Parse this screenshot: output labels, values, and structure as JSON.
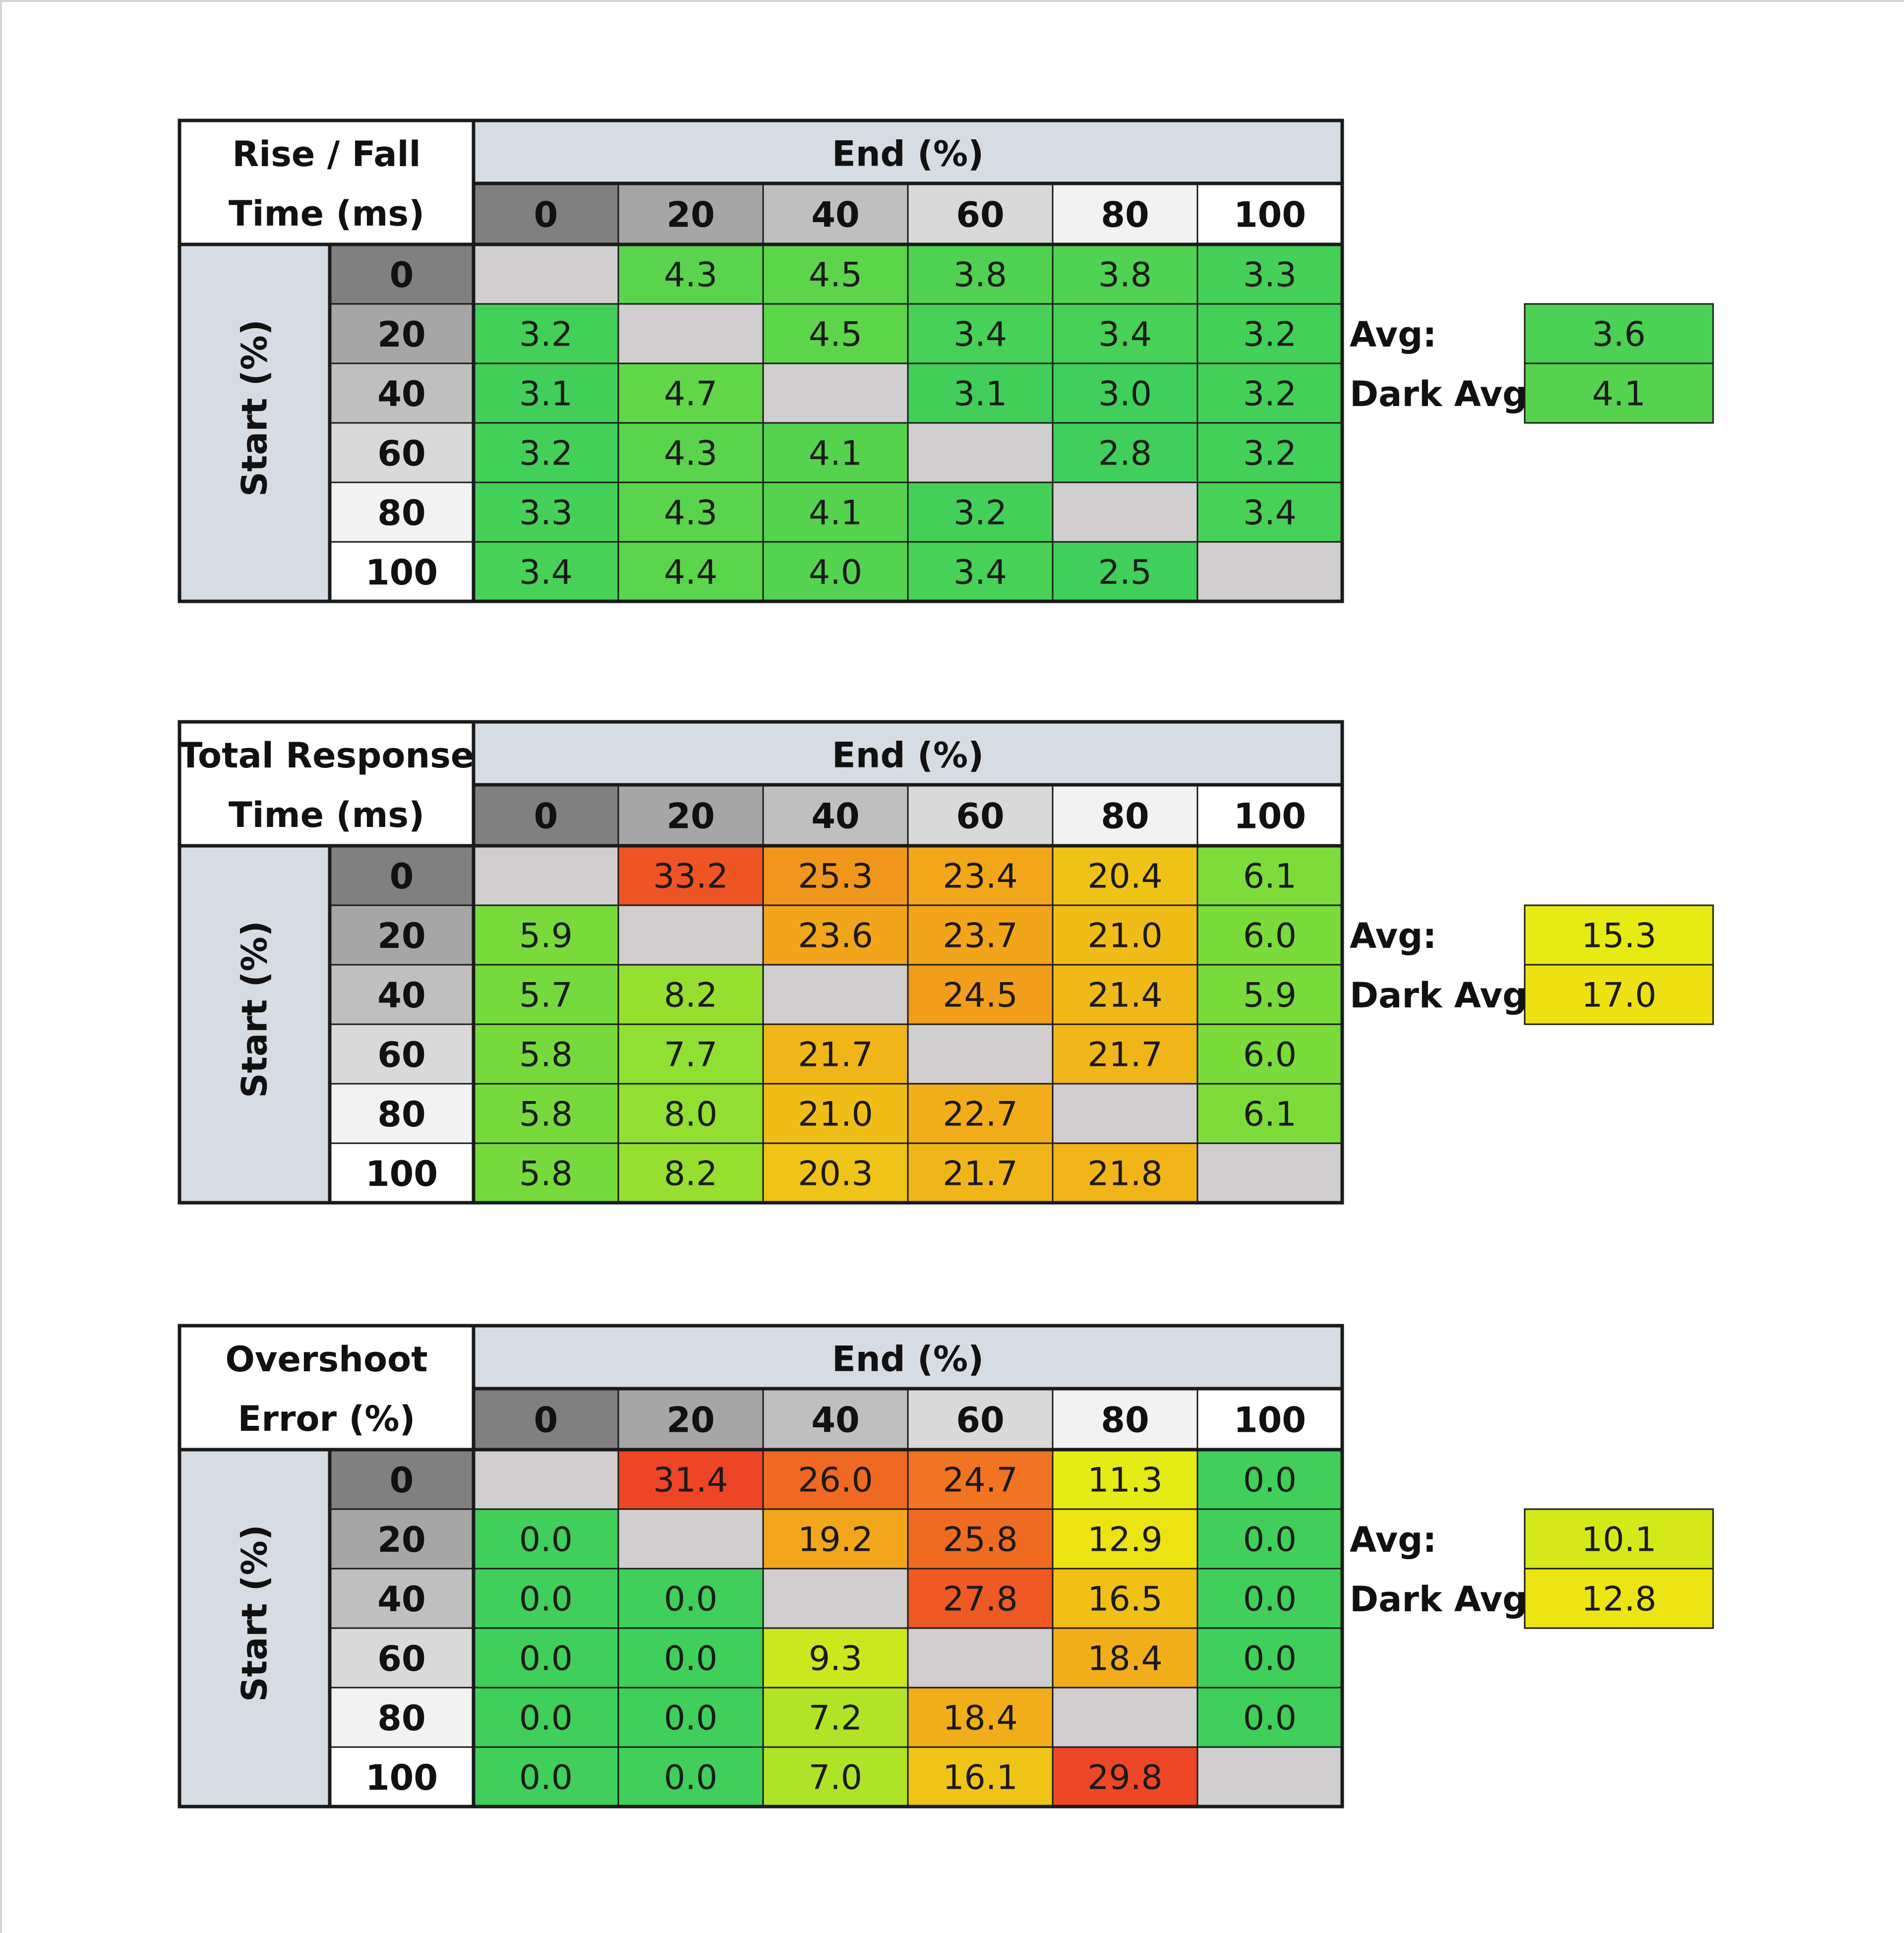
{
  "colors": {
    "header_bg": "#d6dce4",
    "diagonal_blank": "#d0cecf",
    "grid_line": "#1a1a1a",
    "green": "#3fcf5a",
    "green_mid": "#7fdc38",
    "yellow": "#ecec12",
    "orange": "#f2a31b",
    "red": "#ee4527",
    "shade_levels": [
      "#808080",
      "#a6a6a6",
      "#bfbfbf",
      "#d9d9d9",
      "#f2f2f2",
      "#ffffff"
    ]
  },
  "chart_data": [
    {
      "type": "heatmap",
      "title_line1": "Rise / Fall",
      "title_line2": "Time (ms)",
      "xlabel": "End (%)",
      "ylabel": "Start (%)",
      "x": [
        "0",
        "20",
        "40",
        "60",
        "80",
        "100"
      ],
      "y": [
        "0",
        "20",
        "40",
        "60",
        "80",
        "100"
      ],
      "values": [
        [
          null,
          "4.3",
          "4.5",
          "3.8",
          "3.8",
          "3.3"
        ],
        [
          "3.2",
          null,
          "4.5",
          "3.4",
          "3.4",
          "3.2"
        ],
        [
          "3.1",
          "4.7",
          null,
          "3.1",
          "3.0",
          "3.2"
        ],
        [
          "3.2",
          "4.3",
          "4.1",
          null,
          "2.8",
          "3.2"
        ],
        [
          "3.3",
          "4.3",
          "4.1",
          "3.2",
          null,
          "3.4"
        ],
        [
          "3.4",
          "4.4",
          "4.0",
          "3.4",
          "2.5",
          null
        ]
      ],
      "scale": [
        3,
        35
      ],
      "avg_label": "Avg:",
      "avg_value": "3.6",
      "dark_avg_label": "Dark Avg:",
      "dark_avg_value": "4.1"
    },
    {
      "type": "heatmap",
      "title_line1": "Total Response",
      "title_line2": "Time (ms)",
      "xlabel": "End (%)",
      "ylabel": "Start (%)",
      "x": [
        "0",
        "20",
        "40",
        "60",
        "80",
        "100"
      ],
      "y": [
        "0",
        "20",
        "40",
        "60",
        "80",
        "100"
      ],
      "values": [
        [
          null,
          "33.2",
          "25.3",
          "23.4",
          "20.4",
          "6.1"
        ],
        [
          "5.9",
          null,
          "23.6",
          "23.7",
          "21.0",
          "6.0"
        ],
        [
          "5.7",
          "8.2",
          null,
          "24.5",
          "21.4",
          "5.9"
        ],
        [
          "5.8",
          "7.7",
          "21.7",
          null,
          "21.7",
          "6.0"
        ],
        [
          "5.8",
          "8.0",
          "21.0",
          "22.7",
          null,
          "6.1"
        ],
        [
          "5.8",
          "8.2",
          "20.3",
          "21.7",
          "21.8",
          null
        ]
      ],
      "scale": [
        3,
        35
      ],
      "avg_label": "Avg:",
      "avg_value": "15.3",
      "dark_avg_label": "Dark Avg:",
      "dark_avg_value": "17.0"
    },
    {
      "type": "heatmap",
      "title_line1": "Overshoot",
      "title_line2": "Error (%)",
      "xlabel": "End (%)",
      "ylabel": "Start (%)",
      "x": [
        "0",
        "20",
        "40",
        "60",
        "80",
        "100"
      ],
      "y": [
        "0",
        "20",
        "40",
        "60",
        "80",
        "100"
      ],
      "values": [
        [
          null,
          "31.4",
          "26.0",
          "24.7",
          "11.3",
          "0.0"
        ],
        [
          "0.0",
          null,
          "19.2",
          "25.8",
          "12.9",
          "0.0"
        ],
        [
          "0.0",
          "0.0",
          null,
          "27.8",
          "16.5",
          "0.0"
        ],
        [
          "0.0",
          "0.0",
          "9.3",
          null,
          "18.4",
          "0.0"
        ],
        [
          "0.0",
          "0.0",
          "7.2",
          "18.4",
          null,
          "0.0"
        ],
        [
          "0.0",
          "0.0",
          "7.0",
          "16.1",
          "29.8",
          null
        ]
      ],
      "scale": [
        0,
        30
      ],
      "avg_label": "Avg:",
      "avg_value": "10.1",
      "dark_avg_label": "Dark Avg:",
      "dark_avg_value": "12.8"
    }
  ]
}
